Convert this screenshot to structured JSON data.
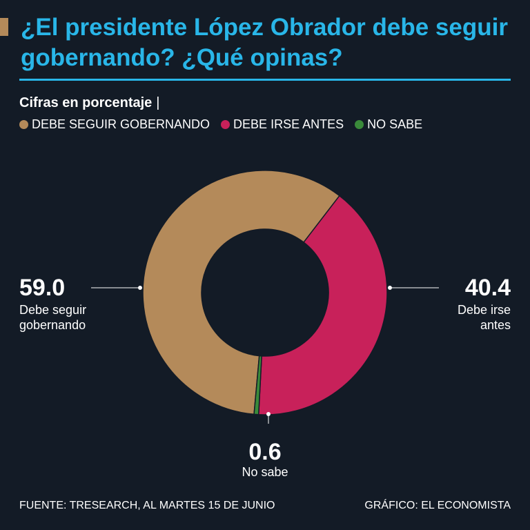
{
  "header": {
    "title": "¿El presidente López Obrador debe seguir gobernando? ¿Qué opinas?",
    "accent_color": "#b48a5a",
    "title_color": "#29b6e8"
  },
  "subtitle": "Cifras en porcentaje",
  "subtitle_separator": "|",
  "legend": [
    {
      "label": "DEBE SEGUIR GOBERNANDO",
      "color": "#b48a5a"
    },
    {
      "label": "DEBE IRSE ANTES",
      "color": "#c8215a"
    },
    {
      "label": "NO SABE",
      "color": "#3a8a3a"
    }
  ],
  "chart_data": {
    "type": "pie",
    "variant": "donut",
    "title": "¿El presidente López Obrador debe seguir gobernando? ¿Qué opinas?",
    "unit": "%",
    "slices": [
      {
        "name": "Debe seguir gobernando",
        "value": 59.0,
        "value_label": "59.0",
        "name_lines": [
          "Debe seguir",
          "gobernando"
        ],
        "color": "#b48a5a"
      },
      {
        "name": "Debe irse antes",
        "value": 40.4,
        "value_label": "40.4",
        "name_lines": [
          "Debe irse",
          "antes"
        ],
        "color": "#c8215a"
      },
      {
        "name": "No sabe",
        "value": 0.6,
        "value_label": "0.6",
        "name_lines": [
          "No sabe"
        ],
        "color": "#3a8a3a"
      }
    ]
  },
  "footer": {
    "source": "FUENTE: TRESEARCH, AL MARTES 15 DE JUNIO",
    "credit": "GRÁFICO: EL ECONOMISTA"
  }
}
